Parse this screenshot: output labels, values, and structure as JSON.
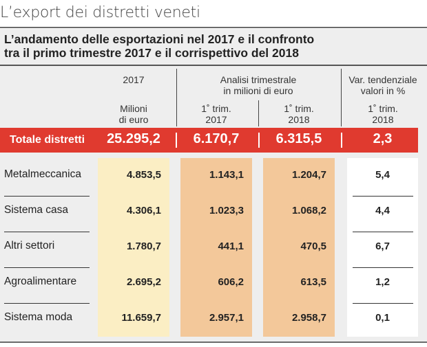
{
  "page_title": "L’export dei distretti veneti",
  "subtitle_line1": "L’andamento delle esportazioni nel 2017 e il confronto",
  "subtitle_line2": "tra il primo trimestre 2017 e il corrispettivo del 2018",
  "headers": {
    "col1_top": "2017",
    "col1_sub1": "Milioni",
    "col1_sub2": "di euro",
    "group_line1": "Analisi trimestrale",
    "group_line2": "in milioni di euro",
    "col2_sub1": "1˚ trim.",
    "col2_sub2": "2017",
    "col3_sub1": "1˚ trim.",
    "col3_sub2": "2018",
    "col4_line1": "Var. tendenziale",
    "col4_line2": "valori in %",
    "col4_sub1": "1˚ trim.",
    "col4_sub2": "2018"
  },
  "chart_data": {
    "type": "table",
    "columns": [
      "2017 Milioni di euro",
      "1˚ trim. 2017",
      "1˚ trim. 2018",
      "Var. tendenziale 1˚ trim. 2018"
    ],
    "total": {
      "label": "Totale distretti",
      "values": [
        "25.295,2",
        "6.170,7",
        "6.315,5",
        "2,3"
      ]
    },
    "rows": [
      {
        "label": "Metalmeccanica",
        "values": [
          "4.853,5",
          "1.143,1",
          "1.204,7",
          "5,4"
        ]
      },
      {
        "label": "Sistema casa",
        "values": [
          "4.306,1",
          "1.023,3",
          "1.068,2",
          "4,4"
        ]
      },
      {
        "label": "Altri settori",
        "values": [
          "1.780,7",
          "441,1",
          "470,5",
          "6,7"
        ]
      },
      {
        "label": "Agroalimentare",
        "values": [
          "2.695,2",
          "606,2",
          "613,5",
          "1,2"
        ]
      },
      {
        "label": "Sistema moda",
        "values": [
          "11.659,7",
          "2.957,1",
          "2.958,7",
          "0,1"
        ]
      }
    ],
    "colors": {
      "total_bar": "#e03a2f",
      "col_2017": "#fbeec4",
      "col_trim": "#f3c89a",
      "col_var": "#ffffff",
      "panel": "#eeeeee"
    }
  }
}
